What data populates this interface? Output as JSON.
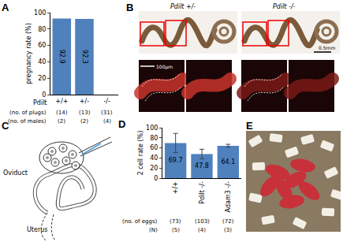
{
  "panel_labels": [
    "A",
    "B",
    "C",
    "D",
    "E"
  ],
  "chart_data": [
    {
      "type": "bar",
      "ylabel": "pregnancy rate (%)",
      "xlabel": "Pdilt",
      "categories": [
        "+/+",
        "+/-",
        "-/-"
      ],
      "values": [
        92.9,
        92.3,
        0
      ],
      "color": "#4f81bd",
      "ylim": [
        0,
        100
      ],
      "yticks": [
        0,
        20,
        40,
        60,
        80,
        100
      ],
      "data_labels": true,
      "table": [
        {
          "label": "(no. of plugs)",
          "cells": [
            "(14)",
            "(13)",
            "(31)"
          ]
        },
        {
          "label": "(no. of males)",
          "cells": [
            "(2)",
            "(2)",
            "(4)"
          ]
        }
      ]
    },
    {
      "type": "bar",
      "ylabel": "2 cell rate (%)",
      "categories": [
        "+/+",
        "Pdilt -/-",
        "Adam3 -/-"
      ],
      "values": [
        69.7,
        47.8,
        64.1
      ],
      "errors": [
        19,
        9.5,
        3
      ],
      "color": "#4f81bd",
      "ylim": [
        0,
        100
      ],
      "yticks": [
        0,
        20,
        40,
        60,
        80,
        100
      ],
      "data_labels": true,
      "table": [
        {
          "label": "(no. of eggs)",
          "cells": [
            "(73)",
            "(103)",
            "(72)"
          ]
        },
        {
          "label": "(N)",
          "cells": [
            "(5)",
            "(4)",
            "(3)"
          ]
        }
      ]
    }
  ],
  "panel_b": {
    "genotypes": [
      "Pdilt +/-",
      "Pdilt -/-"
    ],
    "scale_bars": [
      "0.5mm",
      "100μm"
    ]
  },
  "panel_c": {
    "labels": [
      "Oviduct",
      "Uterus"
    ]
  }
}
